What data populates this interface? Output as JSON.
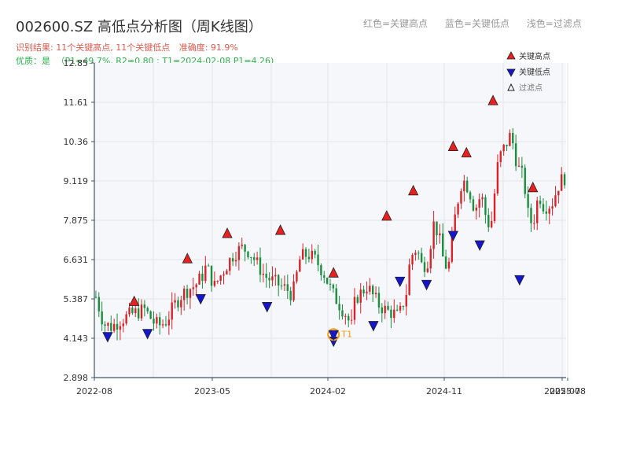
{
  "header": {
    "title": "002600.SZ 高低点分析图（周K线图）",
    "legend_red": "红色=关键高点",
    "legend_blue": "蓝色=关键低点",
    "legend_light": "浅色=过滤点",
    "result_text": "识别结果: 11个关键高点, 11个关键低点",
    "accuracy_text": "准确度: 91.9%",
    "quality_text": "优质：是",
    "quality_params": "（P1=49.7%, R2=0.80 ; T1=2024-02-08 P1=4.26)"
  },
  "colors": {
    "up": "#d9232b",
    "down": "#1a8f3e",
    "high_marker": "#e8201f",
    "low_marker": "#1515cc",
    "t1_marker": "#f39c12",
    "plot_bg": "#f5f7fa",
    "grid": "#e3e6ea",
    "axis": "#445566"
  },
  "chart_data": {
    "type": "candlestick",
    "x_tick_labels": [
      "2022-08",
      "2023-05",
      "2024-02",
      "2024-11",
      "2025-07",
      "2025-08"
    ],
    "y_tick_labels": [
      "2.898",
      "4.143",
      "5.387",
      "6.631",
      "7.875",
      "9.119",
      "10.36",
      "11.61",
      "12.85"
    ],
    "ylim": [
      2.898,
      12.85
    ],
    "legend": [
      {
        "label": "关键高点",
        "marker": "triangle-up",
        "color": "#e8201f"
      },
      {
        "label": "关键低点",
        "marker": "triangle-down",
        "color": "#1515cc"
      },
      {
        "label": "过滤点",
        "marker": "triangle-up-outline",
        "color": "#999999"
      }
    ],
    "key_highs": [
      {
        "date": "2022-11",
        "value": 5.1
      },
      {
        "date": "2023-03",
        "value": 6.45
      },
      {
        "date": "2023-06",
        "value": 7.25
      },
      {
        "date": "2023-10",
        "value": 7.35
      },
      {
        "date": "2024-02",
        "value": 6.0
      },
      {
        "date": "2024-06",
        "value": 7.8
      },
      {
        "date": "2024-08",
        "value": 8.6
      },
      {
        "date": "2024-11",
        "value": 10.0
      },
      {
        "date": "2024-12",
        "value": 9.8
      },
      {
        "date": "2025-02",
        "value": 11.45
      },
      {
        "date": "2025-05",
        "value": 8.7
      }
    ],
    "key_lows": [
      {
        "date": "2022-09",
        "value": 4.4
      },
      {
        "date": "2022-12",
        "value": 4.5
      },
      {
        "date": "2023-04",
        "value": 5.6
      },
      {
        "date": "2023-09",
        "value": 5.35
      },
      {
        "date": "2024-02",
        "value": 4.26
      },
      {
        "date": "2024-05",
        "value": 4.75
      },
      {
        "date": "2024-07",
        "value": 6.15
      },
      {
        "date": "2024-09",
        "value": 6.05
      },
      {
        "date": "2024-11",
        "value": 7.6
      },
      {
        "date": "2025-01",
        "value": 7.3
      },
      {
        "date": "2025-04",
        "value": 6.2
      }
    ],
    "t1_marker": {
      "label": "T1",
      "date": "2024-02-08",
      "value": 4.26
    },
    "path": [
      [
        0,
        5.45
      ],
      [
        10,
        4.6
      ],
      [
        20,
        4.5
      ],
      [
        30,
        4.7
      ],
      [
        45,
        4.9
      ],
      [
        62,
        5.05
      ],
      [
        75,
        4.6
      ],
      [
        82,
        4.55
      ],
      [
        90,
        4.7
      ],
      [
        100,
        5.2
      ],
      [
        110,
        5.55
      ],
      [
        118,
        5.7
      ],
      [
        126,
        5.8
      ],
      [
        135,
        6.1
      ],
      [
        140,
        6.4
      ],
      [
        145,
        6.2
      ],
      [
        150,
        5.75
      ],
      [
        158,
        6.1
      ],
      [
        165,
        6.4
      ],
      [
        175,
        6.8
      ],
      [
        185,
        7.0
      ],
      [
        195,
        6.9
      ],
      [
        205,
        6.5
      ],
      [
        215,
        6.1
      ],
      [
        225,
        5.95
      ],
      [
        235,
        5.8
      ],
      [
        245,
        5.65
      ],
      [
        250,
        5.5
      ],
      [
        260,
        6.7
      ],
      [
        270,
        6.8
      ],
      [
        280,
        6.6
      ],
      [
        290,
        6.2
      ],
      [
        300,
        5.6
      ],
      [
        310,
        5.2
      ],
      [
        318,
        4.9
      ],
      [
        325,
        4.5
      ],
      [
        330,
        5.4
      ],
      [
        338,
        5.6
      ],
      [
        345,
        5.8
      ],
      [
        352,
        5.5
      ],
      [
        360,
        5.2
      ],
      [
        370,
        5.0
      ],
      [
        378,
        4.95
      ],
      [
        385,
        4.8
      ],
      [
        395,
        5.6
      ],
      [
        400,
        6.7
      ],
      [
        408,
        7.0
      ],
      [
        415,
        6.4
      ],
      [
        422,
        6.6
      ],
      [
        430,
        7.8
      ],
      [
        436,
        7.4
      ],
      [
        442,
        6.6
      ],
      [
        448,
        6.3
      ],
      [
        458,
        8.2
      ],
      [
        466,
        9.2
      ],
      [
        474,
        8.9
      ],
      [
        482,
        8.2
      ],
      [
        490,
        8.7
      ],
      [
        496,
        8.0
      ],
      [
        502,
        7.6
      ],
      [
        512,
        9.8
      ],
      [
        520,
        10.2
      ],
      [
        528,
        10.6
      ],
      [
        536,
        9.6
      ],
      [
        544,
        9.2
      ],
      [
        550,
        8.0
      ],
      [
        556,
        7.7
      ],
      [
        560,
        8.4
      ],
      [
        565,
        8.6
      ],
      [
        570,
        8.3
      ],
      [
        580,
        8.4
      ],
      [
        590,
        9.1
      ],
      [
        600,
        9.3
      ]
    ]
  }
}
